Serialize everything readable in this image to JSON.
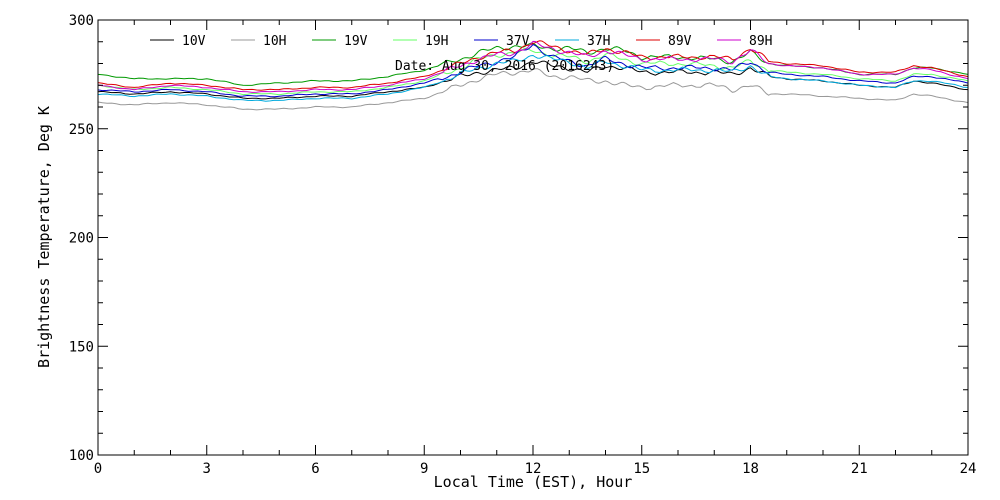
{
  "chart_data": {
    "type": "line",
    "title": "Date: Aug 30, 2016 (2016243)",
    "xlabel": "Local Time (EST), Hour",
    "ylabel": "Brightness Temperature, Deg K",
    "xlim": [
      0,
      24
    ],
    "ylim": [
      100,
      300
    ],
    "xticks": [
      0,
      3,
      6,
      9,
      12,
      15,
      18,
      21,
      24
    ],
    "yticks": [
      100,
      150,
      200,
      250,
      300
    ],
    "grid": false,
    "legend_position": "top",
    "x": [
      0,
      1,
      2,
      3,
      4,
      5,
      6,
      7,
      8,
      9,
      10,
      10.5,
      11,
      11.5,
      12,
      12.5,
      13,
      13.5,
      14,
      14.5,
      15,
      16,
      17,
      17.5,
      18,
      18.5,
      19,
      20,
      21,
      22,
      22.5,
      23,
      24
    ],
    "series": [
      {
        "name": "10V",
        "color": "#000000",
        "values": [
          267,
          266,
          267,
          266,
          264,
          264,
          265,
          265,
          267,
          269,
          274,
          276,
          277,
          278,
          281,
          279,
          278,
          276,
          279,
          278,
          276,
          276,
          276,
          275,
          278,
          274,
          273,
          272,
          270,
          269,
          272,
          271,
          268
        ]
      },
      {
        "name": "10H",
        "color": "#999999",
        "values": [
          262,
          261,
          262,
          261,
          259,
          259,
          260,
          260,
          262,
          264,
          270,
          273,
          275,
          276,
          277,
          274,
          274,
          272,
          272,
          270,
          269,
          270,
          270,
          268,
          270,
          266,
          266,
          265,
          264,
          263,
          266,
          265,
          262
        ]
      },
      {
        "name": "19V",
        "color": "#009900",
        "values": [
          275,
          273,
          273,
          273,
          270,
          271,
          272,
          272,
          274,
          277,
          282,
          285,
          287,
          288,
          288,
          287,
          287,
          285,
          287,
          286,
          283,
          283,
          282,
          281,
          285,
          280,
          279,
          278,
          275,
          275,
          278,
          278,
          275
        ]
      },
      {
        "name": "19H",
        "color": "#66ff66",
        "values": [
          270,
          268,
          269,
          268,
          266,
          266,
          267,
          267,
          269,
          272,
          278,
          282,
          284,
          285,
          286,
          284,
          283,
          281,
          284,
          282,
          280,
          280,
          279,
          278,
          281,
          277,
          276,
          275,
          273,
          272,
          275,
          275,
          272
        ]
      },
      {
        "name": "37V",
        "color": "#0000cc",
        "values": [
          268,
          267,
          268,
          267,
          265,
          265,
          266,
          266,
          268,
          271,
          276,
          279,
          281,
          283,
          289,
          283,
          281,
          279,
          282,
          280,
          278,
          278,
          278,
          277,
          281,
          276,
          275,
          274,
          272,
          271,
          274,
          274,
          271
        ]
      },
      {
        "name": "37H",
        "color": "#00aadd",
        "values": [
          266,
          265,
          266,
          265,
          263,
          263,
          264,
          264,
          266,
          269,
          275,
          278,
          280,
          281,
          284,
          282,
          281,
          278,
          281,
          279,
          277,
          277,
          277,
          276,
          279,
          274,
          273,
          272,
          270,
          269,
          272,
          272,
          269
        ]
      },
      {
        "name": "89V",
        "color": "#dd0000",
        "values": [
          271,
          269,
          271,
          270,
          268,
          268,
          269,
          269,
          271,
          274,
          280,
          283,
          285,
          286,
          290,
          288,
          286,
          284,
          287,
          285,
          283,
          283,
          283,
          282,
          287,
          281,
          280,
          279,
          276,
          276,
          279,
          278,
          274
        ]
      },
      {
        "name": "89H",
        "color": "#cc00cc",
        "values": [
          270,
          268,
          270,
          269,
          267,
          267,
          268,
          268,
          270,
          273,
          279,
          282,
          284,
          285,
          289,
          287,
          285,
          283,
          286,
          284,
          282,
          282,
          282,
          281,
          286,
          280,
          279,
          278,
          275,
          275,
          278,
          277,
          273
        ]
      }
    ]
  }
}
